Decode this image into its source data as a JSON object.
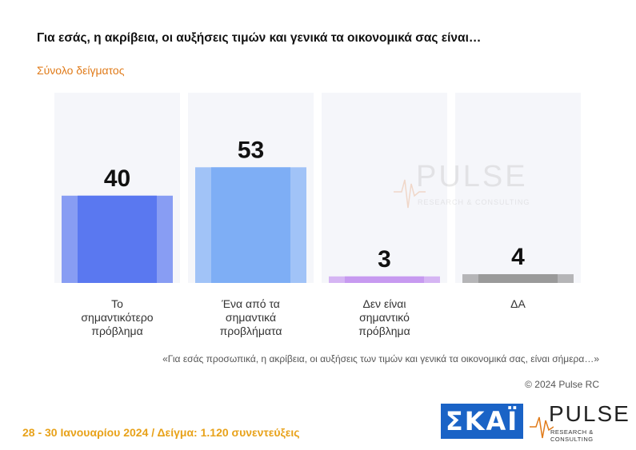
{
  "header": {
    "title": "Για εσάς, η ακρίβεια, οι αυξήσεις τιμών και γενικά τα οικονομικά σας είναι…",
    "subtitle": "Σύνολο δείγματος"
  },
  "chart_data": {
    "type": "bar",
    "categories": [
      [
        "Το",
        "σημαντικότερο",
        "πρόβλημα"
      ],
      [
        "Ένα από τα",
        "σημαντικά",
        "προβλήματα"
      ],
      [
        "Δεν είναι",
        "σημαντικό",
        "πρόβλημα"
      ],
      [
        "ΔΑ"
      ]
    ],
    "values": [
      40,
      53,
      3,
      4
    ],
    "value_labels": [
      "40",
      "53",
      "3",
      "4"
    ],
    "colors": [
      "#5a78f0",
      "#7eaef5",
      "#c79af0",
      "#9a9a9a"
    ],
    "background_color": "#f5f6fa",
    "ylim": [
      0,
      100
    ],
    "grid": false,
    "legend": "none",
    "title": "Για εσάς, η ακρίβεια, οι αυξήσεις τιμών και γενικά τα οικονομικά σας είναι…",
    "xlabel": "",
    "ylabel": ""
  },
  "watermark": {
    "word": "PULSE",
    "sub": "RESEARCH & CONSULTING"
  },
  "notes": {
    "quote": "«Για εσάς προσωπικά, η ακρίβεια, οι αυξήσεις των τιμών και γενικά τα οικονομικά σας, είναι σήμερα…»",
    "copyright": "© 2024 Pulse RC"
  },
  "footer": {
    "text": "28 - 30  Ιανουαρίου  2024  /  Δείγμα:  1.120 συνεντεύξεις"
  },
  "logos": {
    "skai": "ΣΚΑΪ",
    "pulse_word": "PULSE",
    "pulse_sub": "RESEARCH & CONSULTING"
  }
}
